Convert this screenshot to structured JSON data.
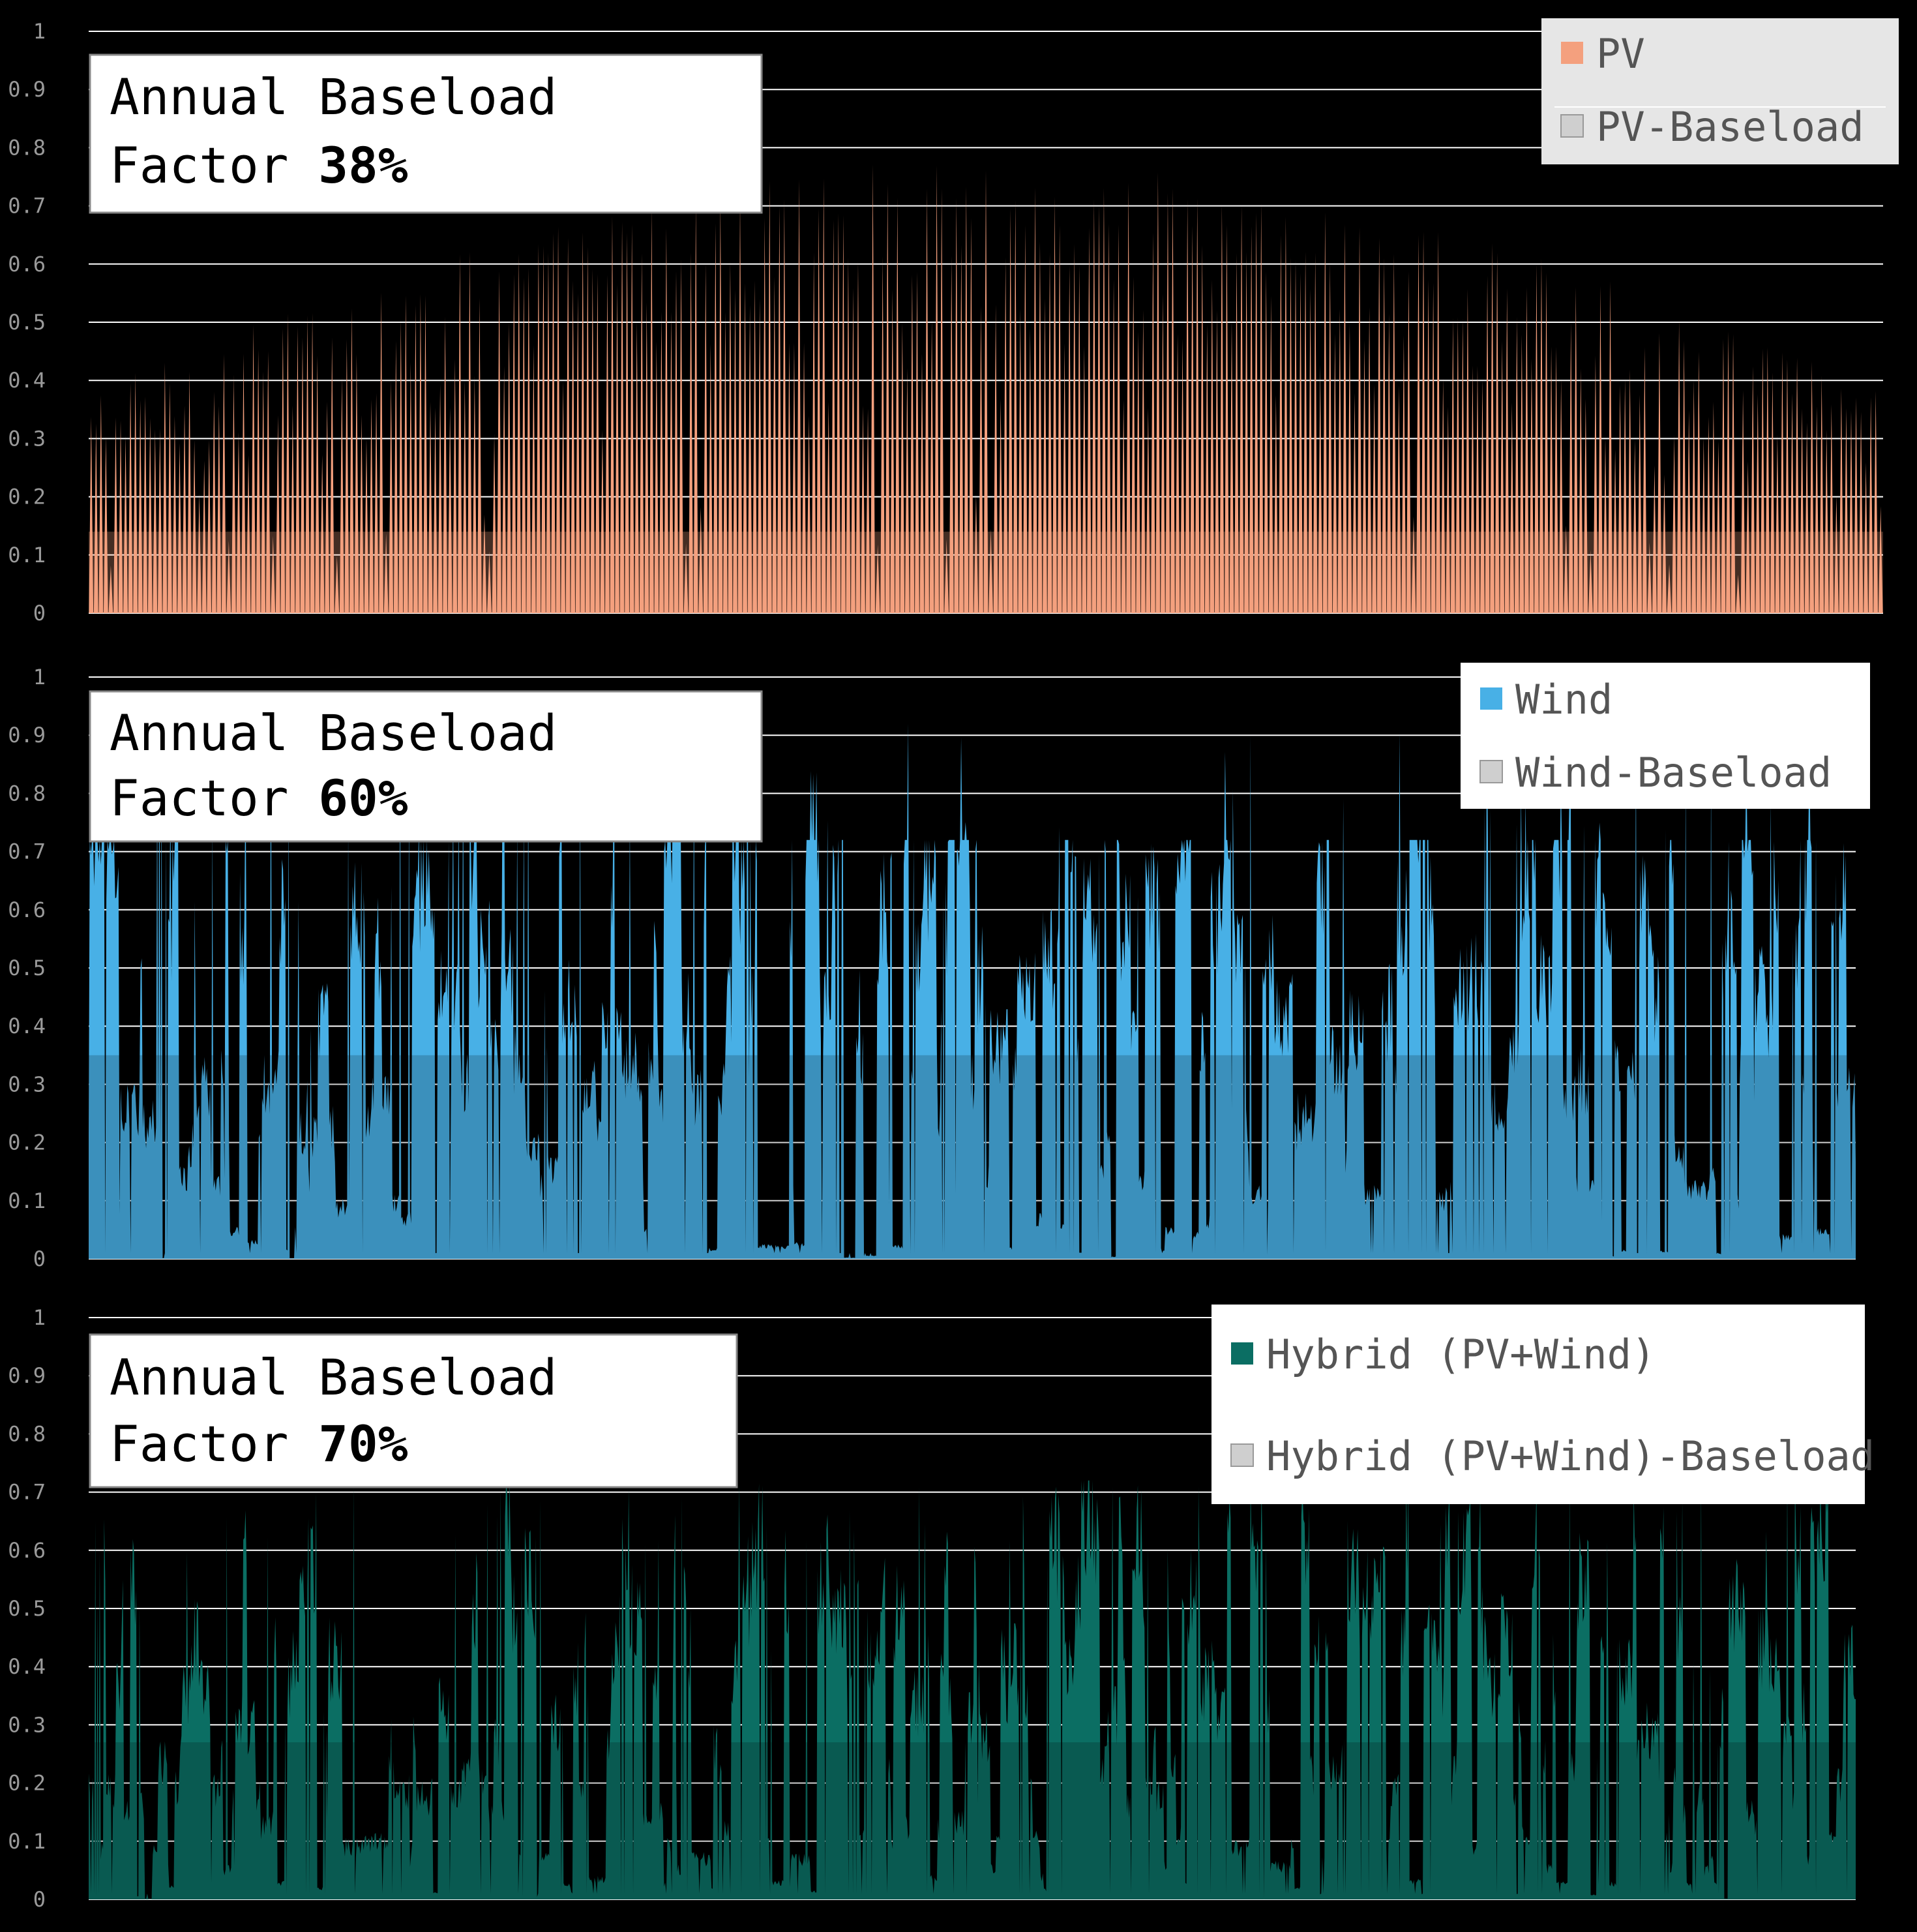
{
  "chart_data": [
    {
      "type": "area",
      "y_ticks": [
        "0",
        "0.1",
        "0.2",
        "0.3",
        "0.4",
        "0.5",
        "0.6",
        "0.7",
        "0.8",
        "0.9",
        "1"
      ],
      "ylim": [
        0,
        1
      ],
      "grid": true,
      "legend_position": "top-right",
      "series": [
        {
          "name": "PV",
          "color": "#f4a07e",
          "profile": "pv_daily",
          "peak_envelope_min": 0.35,
          "peak_envelope_max": 0.78
        },
        {
          "name": "PV-Baseload",
          "color": "#bdbdbd",
          "level": 0.14
        }
      ],
      "annotation": {
        "line1": "Annual Baseload",
        "line2_prefix": "Factor ",
        "line2_value": "38%"
      }
    },
    {
      "type": "area",
      "y_ticks": [
        "0",
        "0.1",
        "0.2",
        "0.3",
        "0.4",
        "0.5",
        "0.6",
        "0.7",
        "0.8",
        "0.9",
        "1"
      ],
      "ylim": [
        0,
        1
      ],
      "grid": true,
      "legend_position": "top-right",
      "series": [
        {
          "name": "Wind",
          "color": "#48b0e6",
          "profile": "wind",
          "max": 0.92,
          "cap_level": 0.72
        },
        {
          "name": "Wind-Baseload",
          "color": "#d0d0d0",
          "level": 0.35
        }
      ],
      "annotation": {
        "line1": "Annual Baseload",
        "line2_prefix": "Factor ",
        "line2_value": "60%"
      }
    },
    {
      "type": "area",
      "y_ticks": [
        "0",
        "0.1",
        "0.2",
        "0.3",
        "0.4",
        "0.5",
        "0.6",
        "0.7",
        "0.8",
        "0.9",
        "1"
      ],
      "ylim": [
        0,
        1
      ],
      "grid": true,
      "legend_position": "top-right",
      "series": [
        {
          "name": "Hybrid (PV+Wind)",
          "color": "#0b6e63",
          "profile": "hybrid",
          "max": 0.72
        },
        {
          "name": "Hybrid (PV+Wind)-Baseload",
          "color": "#d0d0d0",
          "level": 0.27
        }
      ],
      "annotation": {
        "line1": "Annual Baseload",
        "line2_prefix": "Factor ",
        "line2_value": "70%"
      }
    }
  ]
}
